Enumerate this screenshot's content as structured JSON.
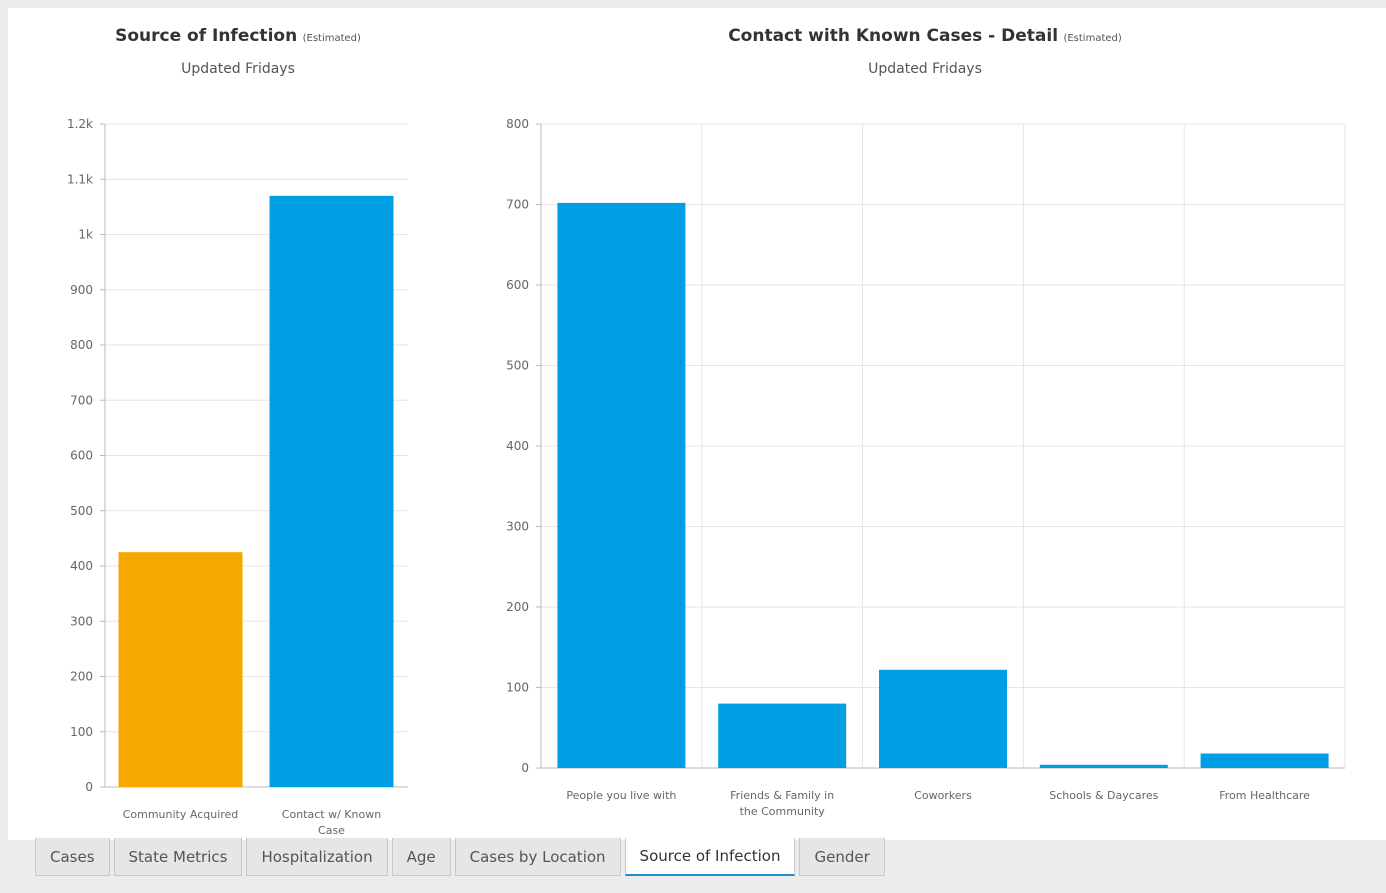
{
  "colors": {
    "orange": "#f6a800",
    "blue": "#009fe3",
    "grid": "#e6e6e6",
    "axis": "#bbbbbb",
    "tab_accent": "#1f8fd0"
  },
  "charts": {
    "left": {
      "title": "Source of Infection",
      "title_suffix": "(Estimated)",
      "subtitle": "Updated Fridays"
    },
    "right": {
      "title": "Contact with Known Cases - Detail",
      "title_suffix": "(Estimated)",
      "subtitle": "Updated Fridays"
    }
  },
  "chart_data": [
    {
      "type": "bar",
      "title": "Source of Infection (Estimated)",
      "subtitle": "Updated Fridays",
      "categories": [
        "Community Acquired",
        "Contact w/ Known Case"
      ],
      "values": [
        425,
        1070
      ],
      "bar_colors": [
        "#f6a800",
        "#009fe3"
      ],
      "ylim": [
        0,
        1200
      ],
      "yticks": [
        0,
        100,
        200,
        300,
        400,
        500,
        600,
        700,
        800,
        900,
        1000,
        1100,
        1200
      ],
      "ytick_labels": [
        "0",
        "100",
        "200",
        "300",
        "400",
        "500",
        "600",
        "700",
        "800",
        "900",
        "1k",
        "1.1k",
        "1.2k"
      ],
      "grid": true
    },
    {
      "type": "bar",
      "title": "Contact with Known Cases - Detail (Estimated)",
      "subtitle": "Updated Fridays",
      "categories": [
        "People you live with",
        "Friends & Family in the Community",
        "Coworkers",
        "Schools & Daycares",
        "From Healthcare"
      ],
      "values": [
        702,
        80,
        122,
        4,
        18
      ],
      "bar_colors": [
        "#009fe3",
        "#009fe3",
        "#009fe3",
        "#009fe3",
        "#009fe3"
      ],
      "ylim": [
        0,
        800
      ],
      "yticks": [
        0,
        100,
        200,
        300,
        400,
        500,
        600,
        700,
        800
      ],
      "ytick_labels": [
        "0",
        "100",
        "200",
        "300",
        "400",
        "500",
        "600",
        "700",
        "800"
      ],
      "grid": true
    }
  ],
  "tabs": [
    {
      "label": "Cases",
      "active": false
    },
    {
      "label": "State Metrics",
      "active": false
    },
    {
      "label": "Hospitalization",
      "active": false
    },
    {
      "label": "Age",
      "active": false
    },
    {
      "label": "Cases by Location",
      "active": false
    },
    {
      "label": "Source of Infection",
      "active": true
    },
    {
      "label": "Gender",
      "active": false
    }
  ]
}
